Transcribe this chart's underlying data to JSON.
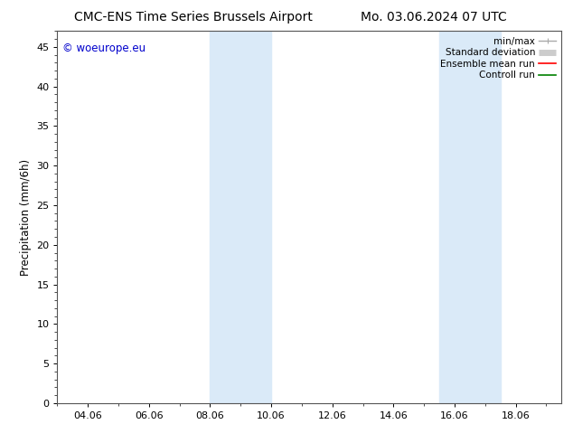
{
  "title_left": "CMC-ENS Time Series Brussels Airport",
  "title_right": "Mo. 03.06.2024 07 UTC",
  "ylabel": "Precipitation (mm/6h)",
  "ylim": [
    0,
    47
  ],
  "yticks": [
    0,
    5,
    10,
    15,
    20,
    25,
    30,
    35,
    40,
    45
  ],
  "xtick_labels": [
    "04.06",
    "06.06",
    "08.06",
    "10.06",
    "12.06",
    "14.06",
    "16.06",
    "18.06"
  ],
  "xtick_positions_days": [
    4,
    6,
    8,
    10,
    12,
    14,
    16,
    18
  ],
  "xlim": [
    3.0,
    19.5
  ],
  "shaded_bands": [
    {
      "x_start_day": 8.0,
      "x_end_day": 10.0
    },
    {
      "x_start_day": 15.5,
      "x_end_day": 17.5
    }
  ],
  "band_color": "#daeaf8",
  "legend_items": [
    {
      "label": "min/max",
      "color": "#aaaaaa",
      "lw": 1.0,
      "type": "line_caps"
    },
    {
      "label": "Standard deviation",
      "color": "#cccccc",
      "lw": 5,
      "type": "line_thick"
    },
    {
      "label": "Ensemble mean run",
      "color": "#ff0000",
      "lw": 1.2,
      "type": "line"
    },
    {
      "label": "Controll run",
      "color": "#008000",
      "lw": 1.2,
      "type": "line"
    }
  ],
  "watermark": "© woeurope.eu",
  "watermark_color": "#0000cc",
  "background_color": "#ffffff",
  "plot_bg_color": "#ffffff",
  "title_fontsize": 10,
  "axis_fontsize": 8.5,
  "tick_fontsize": 8,
  "legend_fontsize": 7.5
}
